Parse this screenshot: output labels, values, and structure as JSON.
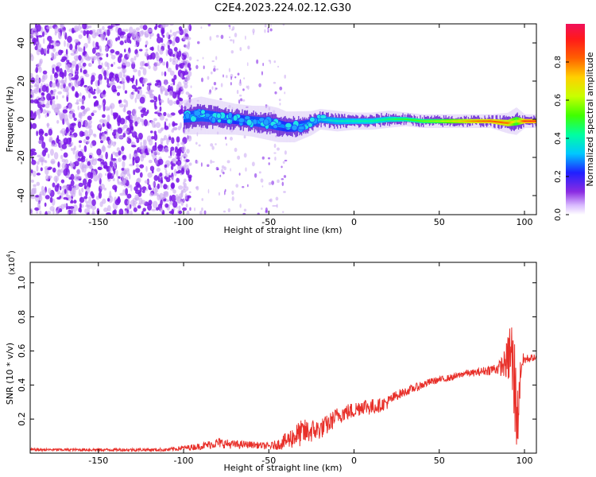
{
  "title": "C2E4.2023.224.02.12.G30",
  "colors": {
    "snr_line": "#e8302a",
    "frame": "#000000",
    "scatter": "#7a16e8",
    "scatter_light": "#c9a6f2",
    "track_cyan": "#22e6e6",
    "track_green": "#3cff3c",
    "track_red": "#ff2020"
  },
  "chart_data": [
    {
      "type": "heatmap",
      "title": "",
      "xlabel": "Height of straight line (km)",
      "ylabel": "Frequency (Hz)",
      "xlim": [
        -190,
        107
      ],
      "ylim": [
        -50,
        50
      ],
      "x_ticks": [
        -150,
        -100,
        -50,
        0,
        50,
        100
      ],
      "y_ticks": [
        -40,
        -20,
        0,
        20,
        40
      ],
      "grid": false,
      "noise_region": {
        "x": [
          -190,
          -100
        ],
        "y": [
          -50,
          50
        ]
      },
      "sparse_region": {
        "x": [
          -100,
          -40
        ],
        "y": [
          -50,
          50
        ]
      },
      "signal_track": {
        "x": [
          -100,
          -90,
          -80,
          -70,
          -60,
          -50,
          -45,
          -40,
          -35,
          -30,
          -25,
          -20,
          -10,
          0,
          10,
          20,
          30,
          40,
          50,
          60,
          70,
          80,
          90,
          95,
          100,
          105
        ],
        "y": [
          1,
          2,
          1,
          0,
          -1,
          -2,
          -3,
          -4,
          -4,
          -3,
          -2,
          0,
          -1,
          -1,
          -1,
          0,
          0,
          -1,
          -1,
          -1,
          -1,
          -1,
          -2,
          -1,
          -1,
          -1
        ],
        "width": [
          10,
          11,
          10,
          9,
          9,
          10,
          10,
          9,
          9,
          8,
          7,
          6,
          6,
          5,
          5,
          5,
          4,
          4,
          4,
          4,
          4,
          4,
          6,
          8,
          4,
          4
        ],
        "amplitude": [
          0.3,
          0.32,
          0.3,
          0.28,
          0.3,
          0.32,
          0.3,
          0.28,
          0.3,
          0.3,
          0.32,
          0.35,
          0.38,
          0.4,
          0.42,
          0.45,
          0.5,
          0.55,
          0.6,
          0.7,
          0.8,
          0.85,
          0.8,
          0.6,
          0.9,
          0.9
        ]
      },
      "colorbar": {
        "label": "Normalized spectral amplitude",
        "range": [
          0.0,
          1.0
        ],
        "ticks": [
          "0.0",
          "0.2",
          "0.4",
          "0.6",
          "0.8"
        ],
        "tick_values": [
          0.0,
          0.2,
          0.4,
          0.6,
          0.8
        ]
      }
    },
    {
      "type": "line",
      "title": "",
      "xlabel": "Height of straight line (km)",
      "ylabel": "SNR (10 * v/v)",
      "scale_label": "(x10",
      "scale_exponent": "4",
      "xlim": [
        -190,
        107
      ],
      "ylim": [
        0,
        1.12
      ],
      "x_ticks": [
        -150,
        -100,
        -50,
        0,
        50,
        100
      ],
      "y_ticks": [
        "0.2",
        "0.4",
        "0.6",
        "0.8",
        "1.0"
      ],
      "y_tick_values": [
        0.2,
        0.4,
        0.6,
        0.8,
        1.0
      ],
      "grid": false,
      "series": [
        {
          "x": [
            -190,
            -150,
            -110,
            -100,
            -90,
            -80,
            -70,
            -60,
            -50,
            -45,
            -40,
            -35,
            -30,
            -25,
            -20,
            -15,
            -10,
            -5,
            0,
            5,
            10,
            15,
            20,
            25,
            30,
            35,
            40,
            45,
            50,
            55,
            60,
            65,
            70,
            75,
            80,
            85,
            88,
            90,
            92,
            94,
            96,
            98,
            100,
            105
          ],
          "y": [
            0.02,
            0.02,
            0.02,
            0.03,
            0.04,
            0.06,
            0.05,
            0.05,
            0.04,
            0.05,
            0.07,
            0.1,
            0.12,
            0.13,
            0.14,
            0.17,
            0.22,
            0.24,
            0.25,
            0.28,
            0.27,
            0.28,
            0.3,
            0.34,
            0.36,
            0.38,
            0.4,
            0.42,
            0.43,
            0.44,
            0.45,
            0.47,
            0.47,
            0.48,
            0.49,
            0.5,
            0.52,
            0.55,
            0.6,
            0.4,
            0.2,
            0.52,
            0.55,
            0.56
          ],
          "jitter": [
            0.008,
            0.008,
            0.01,
            0.015,
            0.02,
            0.03,
            0.025,
            0.02,
            0.02,
            0.03,
            0.05,
            0.07,
            0.08,
            0.07,
            0.06,
            0.06,
            0.05,
            0.05,
            0.05,
            0.05,
            0.05,
            0.04,
            0.04,
            0.03,
            0.025,
            0.025,
            0.025,
            0.02,
            0.02,
            0.02,
            0.02,
            0.02,
            0.02,
            0.025,
            0.03,
            0.04,
            0.08,
            0.12,
            0.25,
            0.35,
            0.2,
            0.08,
            0.03,
            0.02
          ]
        }
      ]
    }
  ]
}
